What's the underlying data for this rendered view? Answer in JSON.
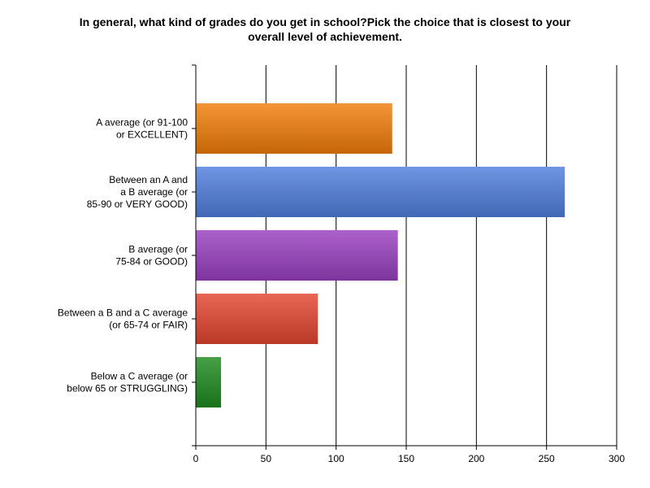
{
  "chart_data": {
    "type": "bar",
    "orientation": "horizontal",
    "title": [
      "In general, what kind of grades do you get in school?Pick the choice that is closest to your",
      "overall level of achievement."
    ],
    "categories": [
      [
        "A average (or 91-100",
        "or EXCELLENT)"
      ],
      [
        "Between an A and",
        "a B average (or",
        "85-90 or VERY GOOD)"
      ],
      [
        "B average (or",
        "75-84 or GOOD)"
      ],
      [
        "Between a B and a C average",
        "(or 65-74 or FAIR)"
      ],
      [
        "Below a C average (or",
        "below 65 or STRUGGLING)"
      ]
    ],
    "values": [
      140,
      263,
      144,
      87,
      18
    ],
    "colors": [
      "#f07c0a",
      "#4f7fdc",
      "#9a3fc0",
      "#e2462e",
      "#1f8a1f"
    ],
    "xlim": [
      0,
      300
    ],
    "xticks": [
      0,
      50,
      100,
      150,
      200,
      250,
      300
    ],
    "grid": true,
    "legend": "none"
  }
}
